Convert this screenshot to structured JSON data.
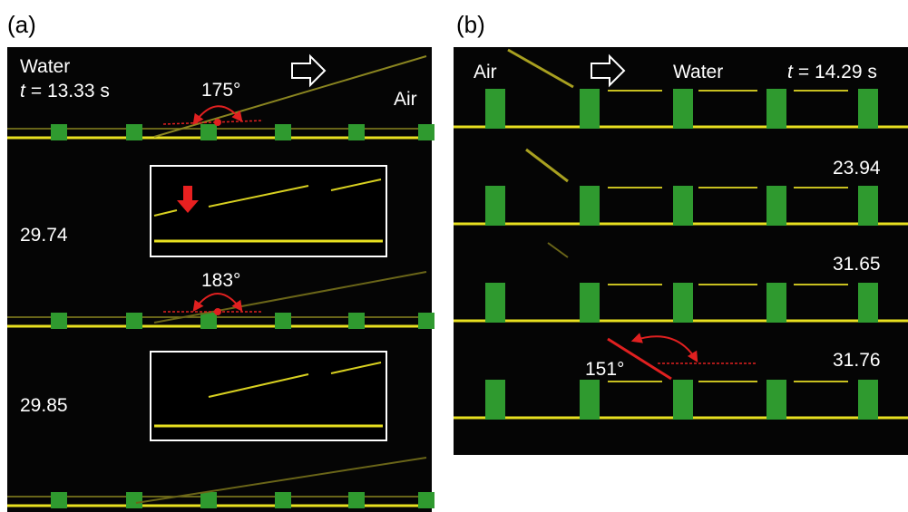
{
  "panel_a": {
    "label": "(a)",
    "medium_left": "Water",
    "time": {
      "symbol": "t",
      "text": "= 13.33 s"
    },
    "angle_1": "175°",
    "medium_right": "Air",
    "inset_1_time": "29.74",
    "angle_2": "183°",
    "inset_2_time": "29.85"
  },
  "panel_b": {
    "label": "(b)",
    "medium_left": "Air",
    "medium_right": "Water",
    "time": {
      "symbol": "t",
      "text": "= 14.29 s"
    },
    "frame_2_time": "23.94",
    "frame_3_time": "31.65",
    "frame_4_time": "31.76",
    "angle": "151°"
  }
}
